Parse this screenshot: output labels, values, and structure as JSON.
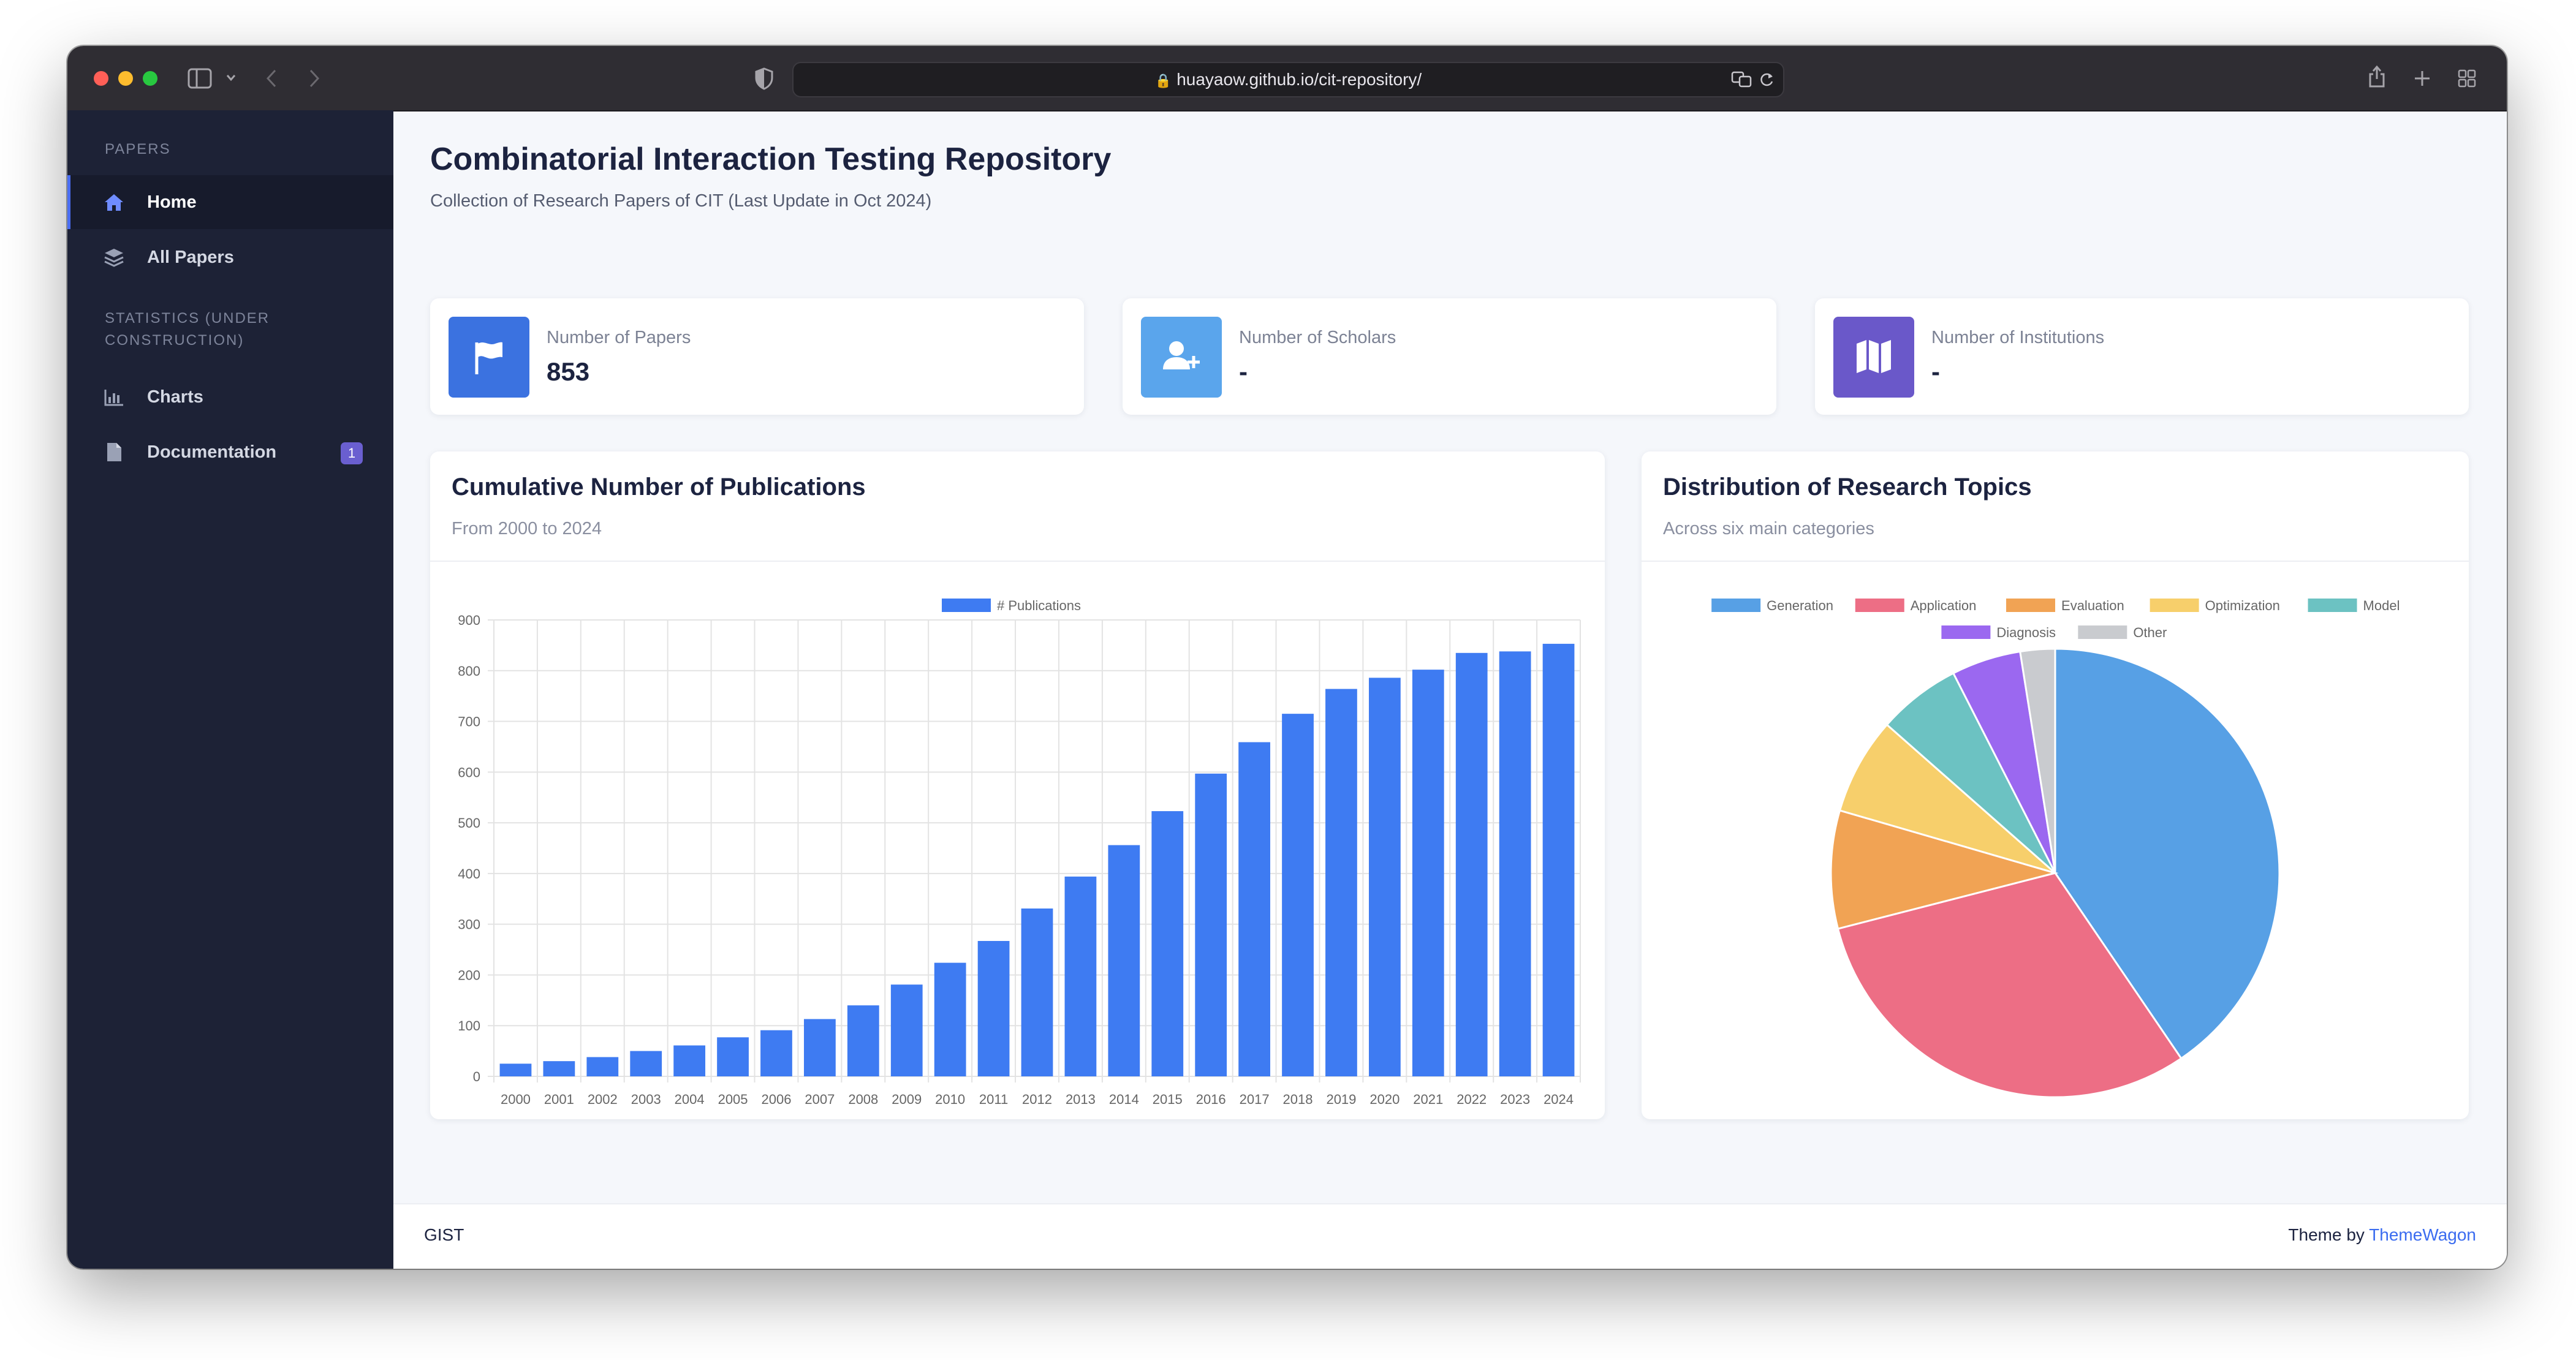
{
  "browser": {
    "url": "huayaow.github.io/cit-repository/"
  },
  "sidebar": {
    "section_papers": "PAPERS",
    "items_top": [
      {
        "label": "Home",
        "icon": "home-icon"
      },
      {
        "label": "All Papers",
        "icon": "layers-icon"
      }
    ],
    "section_stats": "STATISTICS (UNDER CONSTRUCTION)",
    "items_stats": [
      {
        "label": "Charts",
        "icon": "bar-chart-icon"
      },
      {
        "label": "Documentation",
        "icon": "document-icon",
        "badge": "1"
      }
    ]
  },
  "header": {
    "title": "Combinatorial Interaction Testing Repository",
    "subtitle": "Collection of Research Papers of CIT (Last Update in Oct 2024)"
  },
  "stats": [
    {
      "label": "Number of Papers",
      "value": "853",
      "icon": "flag-icon",
      "color": "#3b72e0"
    },
    {
      "label": "Number of Scholars",
      "value": "-",
      "icon": "user-plus-icon",
      "color": "#5aa5ec"
    },
    {
      "label": "Number of Institutions",
      "value": "-",
      "icon": "map-icon",
      "color": "#6a58c9"
    }
  ],
  "bar_card": {
    "title": "Cumulative Number of Publications",
    "subtitle": "From 2000 to 2024"
  },
  "pie_card": {
    "title": "Distribution of Research Topics",
    "subtitle": "Across six main categories"
  },
  "chart_data": [
    {
      "type": "bar",
      "categories": [
        "2000",
        "2001",
        "2002",
        "2003",
        "2004",
        "2005",
        "2006",
        "2007",
        "2008",
        "2009",
        "2010",
        "2011",
        "2012",
        "2013",
        "2014",
        "2015",
        "2016",
        "2017",
        "2018",
        "2019",
        "2020",
        "2021",
        "2022",
        "2023",
        "2024"
      ],
      "series": [
        {
          "name": "# Publications",
          "color": "#3e7bf2",
          "values": [
            25,
            30,
            38,
            50,
            61,
            77,
            91,
            113,
            140,
            181,
            224,
            267,
            331,
            394,
            456,
            523,
            597,
            659,
            715,
            764,
            786,
            802,
            835,
            838,
            853
          ]
        }
      ],
      "ylim": [
        0,
        900
      ],
      "yticks": [
        "0",
        "100",
        "200",
        "300",
        "400",
        "500",
        "600",
        "700",
        "800",
        "900"
      ],
      "grid": true,
      "legend": "top"
    },
    {
      "type": "pie",
      "labels": [
        "Generation",
        "Application",
        "Evaluation",
        "Optimization",
        "Model",
        "Diagnosis",
        "Other"
      ],
      "values": [
        40.5,
        30.5,
        8.5,
        7.0,
        6.0,
        5.0,
        2.5
      ],
      "colors": [
        "#57a0e5",
        "#ed6e85",
        "#f1a354",
        "#f7cf6b",
        "#6cc2c2",
        "#9b68f0",
        "#c9cbcf"
      ],
      "legend": "top"
    }
  ],
  "footer": {
    "left": "GIST",
    "right_prefix": "Theme by ",
    "right_link": "ThemeWagon"
  }
}
